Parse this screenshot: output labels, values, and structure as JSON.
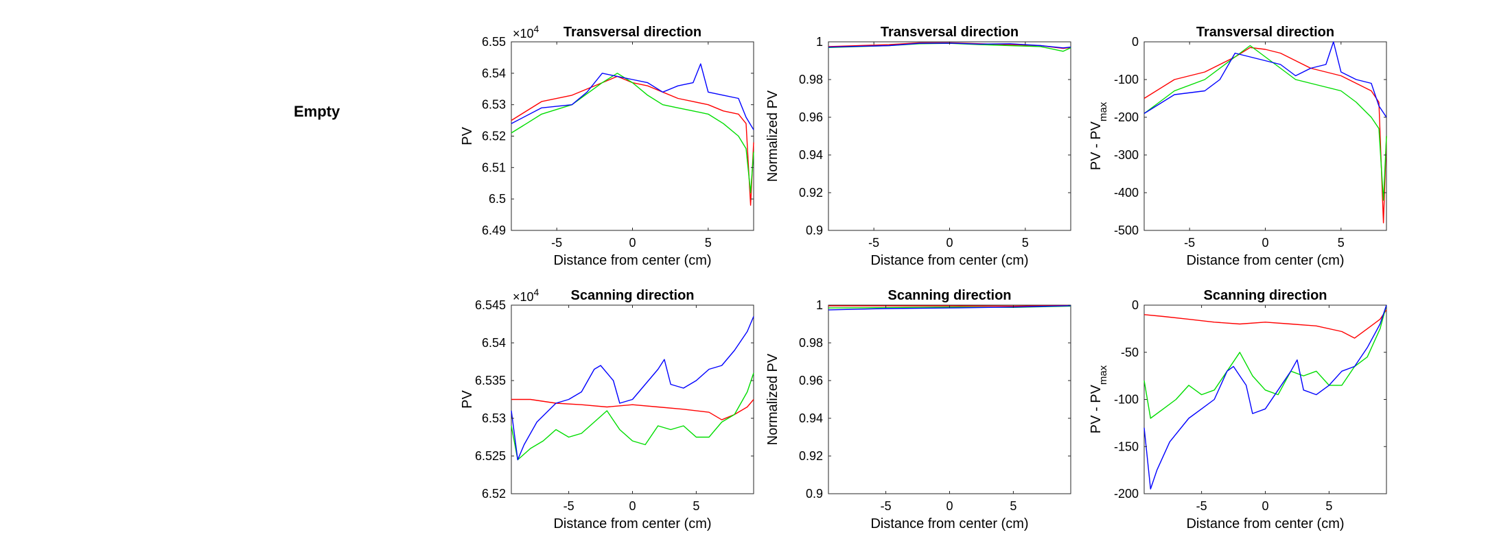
{
  "left_panel": {
    "label": "Empty"
  },
  "chart_data": [
    {
      "type": "line",
      "title": "Transversal direction",
      "xlabel": "Distance from center (cm)",
      "ylabel": "PV",
      "y_exponent_label": "×10",
      "y_exponent_power": "4",
      "xlim": [
        -8,
        8
      ],
      "ylim": [
        6.49,
        6.55
      ],
      "xticks": [
        -5,
        0,
        5
      ],
      "xtick_labels": [
        "-5",
        "0",
        "5"
      ],
      "yticks": [
        6.49,
        6.5,
        6.51,
        6.52,
        6.53,
        6.54,
        6.55
      ],
      "ytick_labels": [
        "6.49",
        "6.5",
        "6.51",
        "6.52",
        "6.53",
        "6.54",
        "6.55"
      ],
      "series": [
        {
          "color": "#ff0000",
          "x": [
            -8,
            -6,
            -4,
            -2,
            -1,
            0,
            1,
            2,
            3,
            4,
            5,
            6,
            7,
            7.5,
            7.8,
            8
          ],
          "y": [
            6.525,
            6.531,
            6.533,
            6.537,
            6.539,
            6.537,
            6.536,
            6.534,
            6.532,
            6.531,
            6.53,
            6.528,
            6.527,
            6.524,
            6.498,
            6.518
          ]
        },
        {
          "color": "#00dd00",
          "x": [
            -8,
            -7,
            -6,
            -4,
            -2,
            -1,
            0,
            1,
            2,
            3,
            4,
            5,
            6,
            7,
            7.5,
            7.8,
            8
          ],
          "y": [
            6.521,
            6.524,
            6.527,
            6.53,
            6.537,
            6.54,
            6.537,
            6.533,
            6.53,
            6.529,
            6.528,
            6.527,
            6.524,
            6.52,
            6.516,
            6.502,
            6.515
          ]
        },
        {
          "color": "#0000ff",
          "x": [
            -8,
            -6,
            -4,
            -3,
            -2,
            -1,
            0,
            1,
            2,
            3,
            4,
            4.5,
            5,
            6,
            7,
            7.5,
            8
          ],
          "y": [
            6.524,
            6.529,
            6.53,
            6.534,
            6.54,
            6.539,
            6.538,
            6.537,
            6.534,
            6.536,
            6.537,
            6.543,
            6.534,
            6.533,
            6.532,
            6.526,
            6.522
          ]
        }
      ]
    },
    {
      "type": "line",
      "title": "Transversal direction",
      "xlabel": "Distance from center (cm)",
      "ylabel": "Normalized PV",
      "xlim": [
        -8,
        8
      ],
      "ylim": [
        0.9,
        1
      ],
      "xticks": [
        -5,
        0,
        5
      ],
      "xtick_labels": [
        "-5",
        "0",
        "5"
      ],
      "yticks": [
        0.9,
        0.92,
        0.94,
        0.96,
        0.98,
        1
      ],
      "ytick_labels": [
        "0.9",
        "0.92",
        "0.94",
        "0.96",
        "0.98",
        "1"
      ],
      "series": [
        {
          "color": "#ff0000",
          "x": [
            -8,
            -4,
            -2,
            0,
            2,
            4,
            6,
            7.5,
            8
          ],
          "y": [
            0.9975,
            0.9985,
            0.9995,
            0.9995,
            0.999,
            0.9985,
            0.998,
            0.9965,
            0.997
          ]
        },
        {
          "color": "#00dd00",
          "x": [
            -8,
            -4,
            -2,
            0,
            2,
            4,
            6,
            7.5,
            8
          ],
          "y": [
            0.997,
            0.998,
            0.999,
            0.9992,
            0.9985,
            0.998,
            0.9975,
            0.995,
            0.9968
          ]
        },
        {
          "color": "#0000ff",
          "x": [
            -8,
            -4,
            -2,
            0,
            2,
            4,
            6,
            7.5,
            8
          ],
          "y": [
            0.9972,
            0.998,
            0.9992,
            0.9993,
            0.9988,
            0.999,
            0.998,
            0.9968,
            0.9972
          ]
        }
      ]
    },
    {
      "type": "line",
      "title": "Transversal direction",
      "xlabel": "Distance from center (cm)",
      "ylabel": "PV - PV",
      "ylabel_subscript": "max",
      "xlim": [
        -8,
        8
      ],
      "ylim": [
        -500,
        0
      ],
      "xticks": [
        -5,
        0,
        5
      ],
      "xtick_labels": [
        "-5",
        "0",
        "5"
      ],
      "yticks": [
        -500,
        -400,
        -300,
        -200,
        -100,
        0
      ],
      "ytick_labels": [
        "-500",
        "-400",
        "-300",
        "-200",
        "-100",
        "0"
      ],
      "series": [
        {
          "color": "#ff0000",
          "x": [
            -8,
            -6,
            -4,
            -2,
            -1,
            0,
            1,
            2,
            3,
            4,
            5,
            6,
            7,
            7.5,
            7.8,
            8
          ],
          "y": [
            -150,
            -100,
            -80,
            -40,
            -15,
            -20,
            -30,
            -50,
            -70,
            -80,
            -90,
            -110,
            -130,
            -160,
            -480,
            -250
          ]
        },
        {
          "color": "#00dd00",
          "x": [
            -8,
            -7,
            -6,
            -4,
            -2,
            -1,
            0,
            1,
            2,
            3,
            4,
            5,
            6,
            7,
            7.5,
            7.8,
            8
          ],
          "y": [
            -190,
            -160,
            -130,
            -100,
            -40,
            -10,
            -40,
            -70,
            -100,
            -110,
            -120,
            -130,
            -160,
            -200,
            -230,
            -420,
            -250
          ]
        },
        {
          "color": "#0000ff",
          "x": [
            -8,
            -6,
            -4,
            -3,
            -2,
            -1,
            0,
            1,
            2,
            3,
            4,
            4.5,
            5,
            6,
            7,
            7.5,
            8
          ],
          "y": [
            -190,
            -140,
            -130,
            -100,
            -30,
            -40,
            -50,
            -60,
            -90,
            -70,
            -60,
            0,
            -80,
            -100,
            -110,
            -170,
            -200
          ]
        }
      ]
    },
    {
      "type": "line",
      "title": "Scanning direction",
      "xlabel": "Distance from center (cm)",
      "ylabel": "PV",
      "y_exponent_label": "×10",
      "y_exponent_power": "4",
      "xlim": [
        -9.5,
        9.5
      ],
      "ylim": [
        6.52,
        6.545
      ],
      "xticks": [
        -5,
        0,
        5
      ],
      "xtick_labels": [
        "-5",
        "0",
        "5"
      ],
      "yticks": [
        6.52,
        6.525,
        6.53,
        6.535,
        6.54,
        6.545
      ],
      "ytick_labels": [
        "6.52",
        "6.525",
        "6.53",
        "6.535",
        "6.54",
        "6.545"
      ],
      "series": [
        {
          "color": "#ff0000",
          "x": [
            -9.5,
            -8,
            -6,
            -4,
            -2,
            0,
            2,
            4,
            6,
            7,
            8,
            9,
            9.5
          ],
          "y": [
            6.5325,
            6.5325,
            6.532,
            6.5318,
            6.5315,
            6.5318,
            6.5315,
            6.5312,
            6.5308,
            6.5298,
            6.5305,
            6.5315,
            6.5325
          ]
        },
        {
          "color": "#00dd00",
          "x": [
            -9.5,
            -9,
            -8,
            -7,
            -6,
            -5,
            -4,
            -3,
            -2,
            -1,
            0,
            1,
            2,
            3,
            4,
            5,
            6,
            7,
            8,
            9,
            9.5
          ],
          "y": [
            6.529,
            6.5245,
            6.526,
            6.527,
            6.5285,
            6.5275,
            6.528,
            6.5295,
            6.531,
            6.5285,
            6.527,
            6.5265,
            6.529,
            6.5285,
            6.529,
            6.5275,
            6.5275,
            6.5295,
            6.5305,
            6.5335,
            6.536
          ]
        },
        {
          "color": "#0000ff",
          "x": [
            -9.5,
            -9,
            -8.5,
            -7.5,
            -6,
            -5,
            -4,
            -3,
            -2.5,
            -1.5,
            -1,
            0,
            1,
            2,
            2.5,
            3,
            4,
            5,
            6,
            7,
            8,
            9,
            9.5
          ],
          "y": [
            6.531,
            6.5245,
            6.5265,
            6.5295,
            6.532,
            6.5325,
            6.5335,
            6.5365,
            6.537,
            6.535,
            6.532,
            6.5325,
            6.5345,
            6.5365,
            6.5378,
            6.5345,
            6.534,
            6.535,
            6.5365,
            6.537,
            6.539,
            6.5415,
            6.5435
          ]
        }
      ]
    },
    {
      "type": "line",
      "title": "Scanning direction",
      "xlabel": "Distance from center (cm)",
      "ylabel": "Normalized PV",
      "xlim": [
        -9.5,
        9.5
      ],
      "ylim": [
        0.9,
        1
      ],
      "xticks": [
        -5,
        0,
        5
      ],
      "xtick_labels": [
        "-5",
        "0",
        "5"
      ],
      "yticks": [
        0.9,
        0.92,
        0.94,
        0.96,
        0.98,
        1
      ],
      "ytick_labels": [
        "0.9",
        "0.92",
        "0.94",
        "0.96",
        "0.98",
        "1"
      ],
      "series": [
        {
          "color": "#ff0000",
          "x": [
            -9.5,
            -5,
            0,
            5,
            9.5
          ],
          "y": [
            0.9996,
            0.9996,
            0.9996,
            0.9995,
            0.9998
          ]
        },
        {
          "color": "#00dd00",
          "x": [
            -9.5,
            -5,
            0,
            5,
            9.5
          ],
          "y": [
            0.9985,
            0.9987,
            0.999,
            0.9988,
            0.9995
          ]
        },
        {
          "color": "#0000ff",
          "x": [
            -9.5,
            -5,
            0,
            5,
            9.5
          ],
          "y": [
            0.9975,
            0.9982,
            0.9985,
            0.999,
            0.9997
          ]
        }
      ]
    },
    {
      "type": "line",
      "title": "Scanning direction",
      "xlabel": "Distance from center (cm)",
      "ylabel": "PV - PV",
      "ylabel_subscript": "max",
      "xlim": [
        -9.5,
        9.5
      ],
      "ylim": [
        -200,
        0
      ],
      "xticks": [
        -5,
        0,
        5
      ],
      "xtick_labels": [
        "-5",
        "0",
        "5"
      ],
      "yticks": [
        -200,
        -150,
        -100,
        -50,
        0
      ],
      "ytick_labels": [
        "-200",
        "-150",
        "-100",
        "-50",
        "0"
      ],
      "series": [
        {
          "color": "#ff0000",
          "x": [
            -9.5,
            -8,
            -6,
            -4,
            -2,
            0,
            2,
            4,
            6,
            7,
            8,
            9,
            9.5
          ],
          "y": [
            -10,
            -12,
            -15,
            -18,
            -20,
            -18,
            -20,
            -22,
            -28,
            -35,
            -25,
            -15,
            -5
          ]
        },
        {
          "color": "#00dd00",
          "x": [
            -9.5,
            -9,
            -8,
            -7,
            -6,
            -5,
            -4,
            -3,
            -2,
            -1,
            0,
            1,
            2,
            3,
            4,
            5,
            6,
            7,
            8,
            9,
            9.5
          ],
          "y": [
            -80,
            -120,
            -110,
            -100,
            -85,
            -95,
            -90,
            -70,
            -50,
            -75,
            -90,
            -95,
            -70,
            -75,
            -70,
            -85,
            -85,
            -65,
            -55,
            -25,
            0
          ]
        },
        {
          "color": "#0000ff",
          "x": [
            -9.5,
            -9,
            -8.5,
            -7.5,
            -6,
            -5,
            -4,
            -3,
            -2.5,
            -1.5,
            -1,
            0,
            1,
            2,
            2.5,
            3,
            4,
            5,
            6,
            7,
            8,
            9,
            9.5
          ],
          "y": [
            -130,
            -195,
            -175,
            -145,
            -120,
            -110,
            -100,
            -70,
            -65,
            -85,
            -115,
            -110,
            -90,
            -70,
            -58,
            -90,
            -95,
            -85,
            -70,
            -65,
            -45,
            -20,
            0
          ]
        }
      ]
    }
  ]
}
